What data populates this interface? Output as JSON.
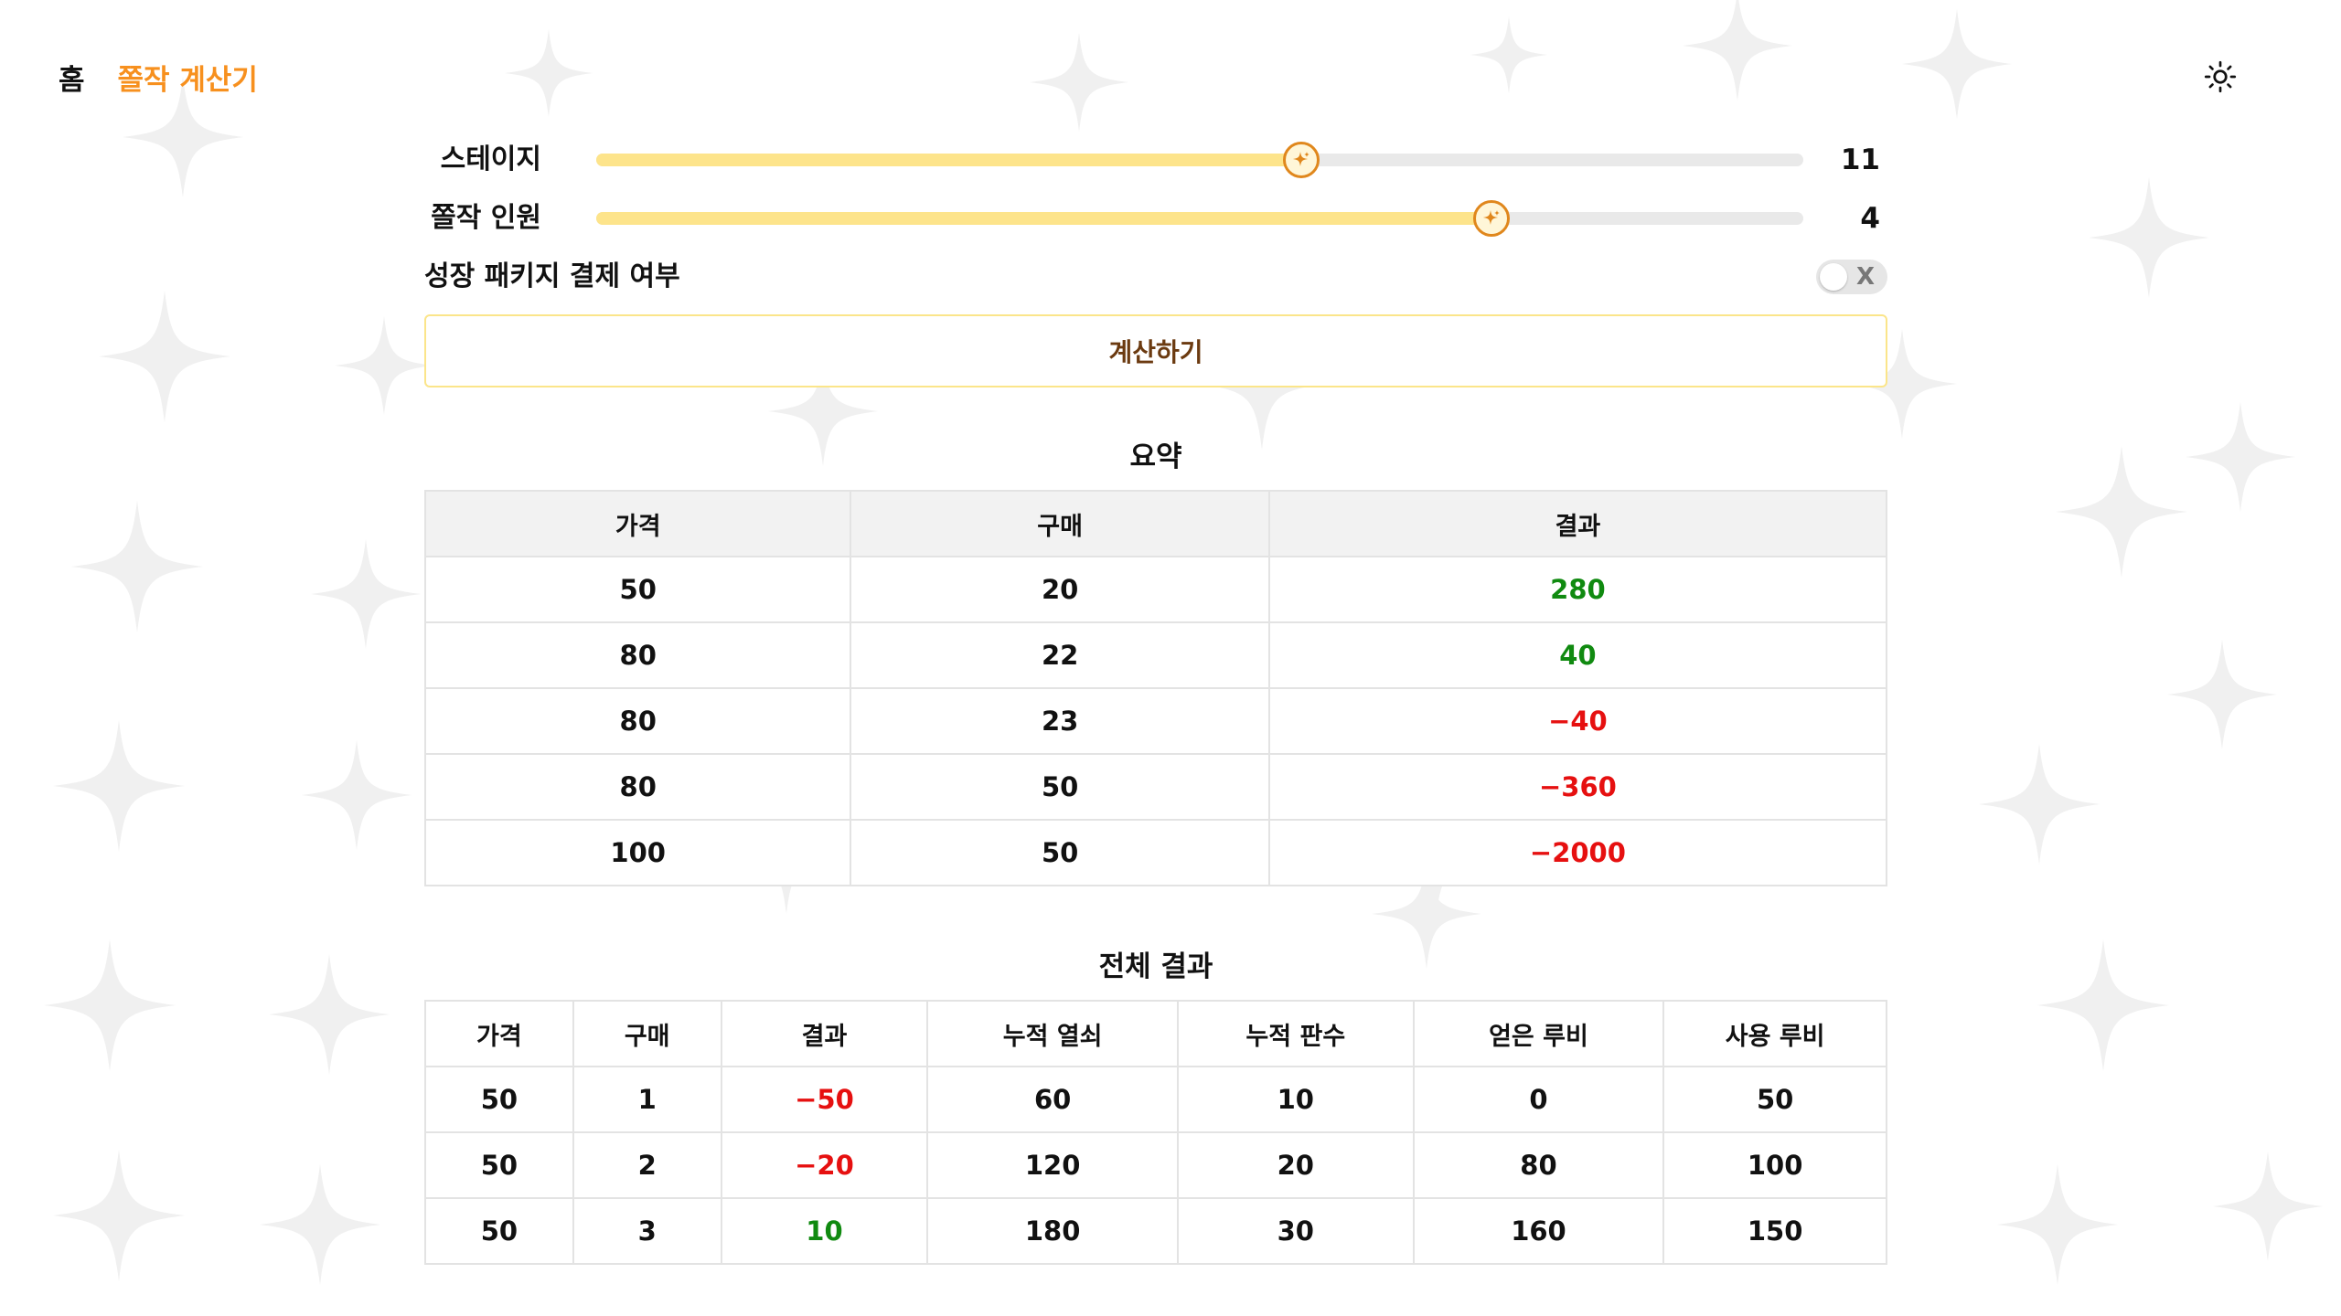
{
  "nav": {
    "home": "홈",
    "current": "쫄작 계산기"
  },
  "colors": {
    "accent": "#f7901e",
    "slider_fill": "#fde48b",
    "slider_thumb_border": "#e0871c",
    "positive": "#108a10",
    "negative": "#e61010",
    "button_border": "#fbe58a"
  },
  "icons": {
    "theme_toggle": "sun-icon",
    "slider_thumb": "sparkle-icon"
  },
  "controls": {
    "stage": {
      "label": "스테이지",
      "value": "11",
      "fraction": 0.584
    },
    "members": {
      "label": "쫄작 인원",
      "value": "4",
      "fraction": 0.742
    },
    "package": {
      "label": "성장 패키지 결제 여부",
      "toggle_text": "X",
      "checked": false
    },
    "calculate_label": "계산하기"
  },
  "summary": {
    "title": "요약",
    "headers": [
      "가격",
      "구매",
      "결과"
    ],
    "rows": [
      [
        "50",
        "20",
        "280"
      ],
      [
        "80",
        "22",
        "40"
      ],
      [
        "80",
        "23",
        "−40"
      ],
      [
        "80",
        "50",
        "−360"
      ],
      [
        "100",
        "50",
        "−2000"
      ]
    ]
  },
  "full": {
    "title": "전체 결과",
    "headers": [
      "가격",
      "구매",
      "결과",
      "누적 열쇠",
      "누적 판수",
      "얻은 루비",
      "사용 루비"
    ],
    "rows": [
      [
        "50",
        "1",
        "−50",
        "60",
        "10",
        "0",
        "50"
      ],
      [
        "50",
        "2",
        "−20",
        "120",
        "20",
        "80",
        "100"
      ],
      [
        "50",
        "3",
        "10",
        "180",
        "30",
        "160",
        "150"
      ]
    ]
  }
}
